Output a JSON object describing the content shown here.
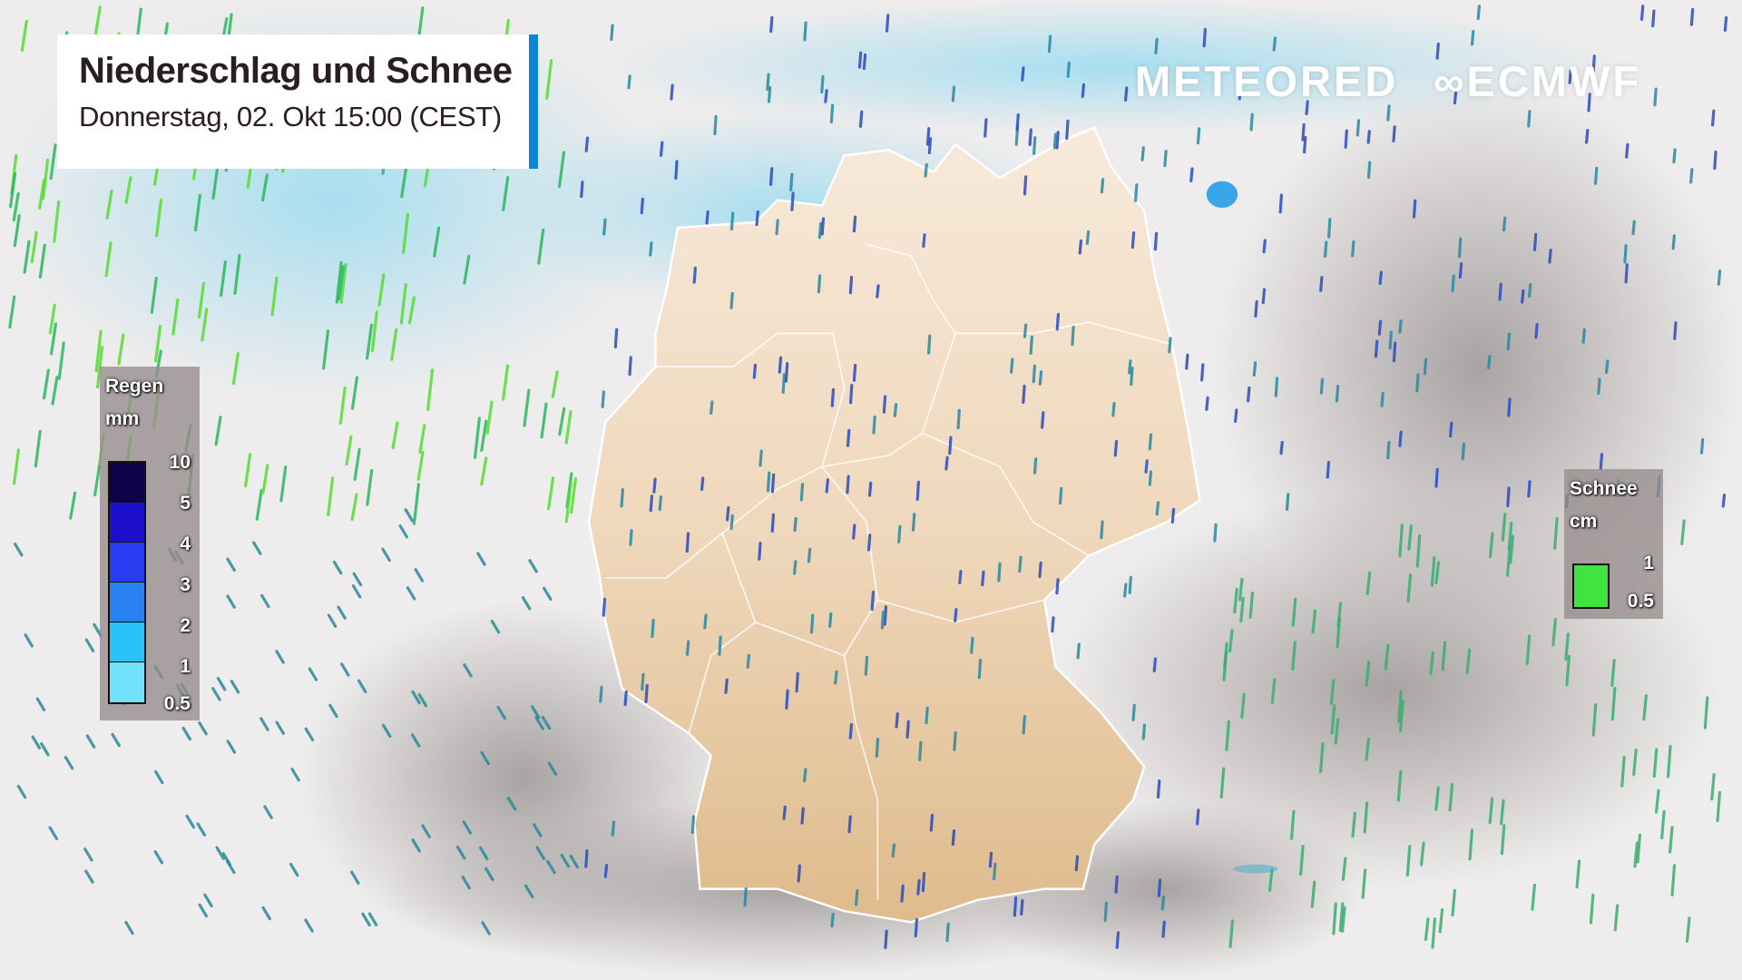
{
  "header": {
    "title": "Niederschlag und Schnee",
    "subtitle": "Donnerstag, 02. Okt 15:00 (CEST)",
    "accent_color": "#0a84d8"
  },
  "brand": {
    "meteored": "METEORED",
    "ecmwf": "ECMWF"
  },
  "rain_legend": {
    "title": "Regen",
    "unit": "mm",
    "levels": [
      "10",
      "5",
      "4",
      "3",
      "2",
      "1",
      "0.5"
    ],
    "colors": [
      "#10024a",
      "#1c10cc",
      "#2a3cf0",
      "#2a82f0",
      "#28c4f8",
      "#72e2fc"
    ]
  },
  "snow_legend": {
    "title": "Schnee",
    "unit": "cm",
    "levels": [
      "1",
      "0.5"
    ],
    "color": "#3fe43f"
  },
  "map": {
    "land_color": "#f0dcc2",
    "sea_color": "#bfe6f2",
    "cloud_color": "#b8b3b3"
  }
}
